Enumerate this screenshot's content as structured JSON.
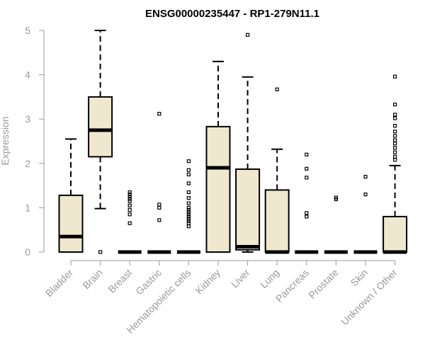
{
  "chart_data": {
    "type": "box",
    "title": "ENSG00000235447 - RP1-279N11.1",
    "xlabel": "",
    "ylabel": "Expression",
    "ylim": [
      0,
      5
    ],
    "yticks": [
      0,
      1,
      2,
      3,
      4,
      5
    ],
    "box_fill": "#efe8cf",
    "box_stroke": "#000000",
    "axis_color": "#9a9a9a",
    "categories": [
      "Bladder",
      "Brain",
      "Breast",
      "Gastric",
      "Hematopoietic cells",
      "Kidney",
      "Liver",
      "Lung",
      "Pancreas",
      "Prostate",
      "Skin",
      "Unknown / Other"
    ],
    "boxes": [
      {
        "category": "Bladder",
        "whisker_low": 0,
        "q1": 0,
        "median": 0.35,
        "q3": 1.28,
        "whisker_high": 2.55,
        "outliers": []
      },
      {
        "category": "Brain",
        "whisker_low": 0.98,
        "q1": 2.15,
        "median": 2.75,
        "q3": 3.5,
        "whisker_high": 5.0,
        "outliers": [
          0
        ]
      },
      {
        "category": "Breast",
        "whisker_low": 0,
        "q1": 0,
        "median": 0,
        "q3": 0,
        "whisker_high": 0,
        "outliers": [
          1.35,
          1.3,
          1.25,
          1.2,
          1.15,
          1.05,
          0.95,
          0.85,
          0.65
        ]
      },
      {
        "category": "Gastric",
        "whisker_low": 0,
        "q1": 0,
        "median": 0,
        "q3": 0,
        "whisker_high": 0,
        "outliers": [
          3.12,
          1.07,
          1.0,
          0.72
        ]
      },
      {
        "category": "Hematopoietic cells",
        "whisker_low": 0,
        "q1": 0,
        "median": 0,
        "q3": 0,
        "whisker_high": 0,
        "outliers": [
          2.05,
          1.85,
          1.75,
          1.55,
          1.35,
          1.22,
          1.1,
          1.0,
          0.95,
          0.9,
          0.85,
          0.8,
          0.75,
          0.7,
          0.65,
          0.58
        ]
      },
      {
        "category": "Kidney",
        "whisker_low": 0,
        "q1": 0,
        "median": 1.9,
        "q3": 2.83,
        "whisker_high": 4.3,
        "outliers": []
      },
      {
        "category": "Liver",
        "whisker_low": 0,
        "q1": 0.05,
        "median": 0.12,
        "q3": 1.87,
        "whisker_high": 3.95,
        "outliers": [
          4.9
        ]
      },
      {
        "category": "Lung",
        "whisker_low": 0,
        "q1": 0,
        "median": 0,
        "q3": 1.4,
        "whisker_high": 2.32,
        "outliers": [
          3.67
        ]
      },
      {
        "category": "Pancreas",
        "whisker_low": 0,
        "q1": 0,
        "median": 0,
        "q3": 0,
        "whisker_high": 0,
        "outliers": [
          2.2,
          1.88,
          1.68,
          0.88,
          0.8
        ]
      },
      {
        "category": "Prostate",
        "whisker_low": 0,
        "q1": 0,
        "median": 0,
        "q3": 0,
        "whisker_high": 0,
        "outliers": [
          1.23,
          1.19
        ]
      },
      {
        "category": "Skin",
        "whisker_low": 0,
        "q1": 0,
        "median": 0,
        "q3": 0,
        "whisker_high": 0,
        "outliers": [
          1.7,
          1.3
        ]
      },
      {
        "category": "Unknown / Other",
        "whisker_low": 0,
        "q1": 0,
        "median": 0,
        "q3": 0.8,
        "whisker_high": 1.95,
        "outliers": [
          3.96,
          3.33,
          3.1,
          3.02,
          2.85,
          2.72,
          2.62,
          2.52,
          2.45,
          2.35,
          2.25,
          2.15,
          2.08
        ]
      }
    ]
  }
}
